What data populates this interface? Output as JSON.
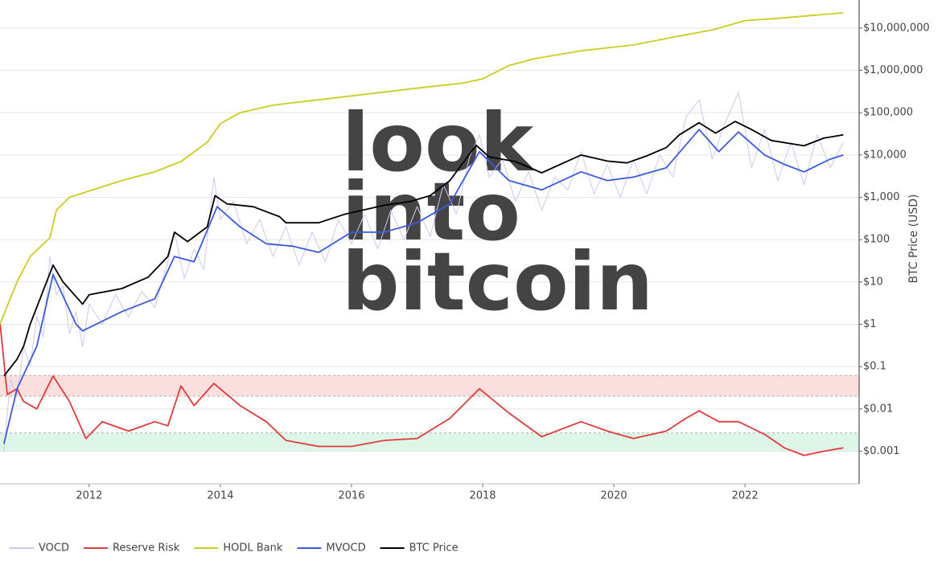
{
  "chart_data": {
    "type": "line",
    "log_y": true,
    "grid": true,
    "y_label": "BTC Price (USD)",
    "watermark": [
      "look",
      "into",
      "bitcoin"
    ],
    "xlim": [
      2010.64,
      2023.74
    ],
    "xticks": [
      2012,
      2014,
      2016,
      2018,
      2020,
      2022
    ],
    "ylim": [
      0.00017,
      46000000
    ],
    "yticks": [
      {
        "value": 0.001,
        "label": "$0.001"
      },
      {
        "value": 0.01,
        "label": "$0.01"
      },
      {
        "value": 0.1,
        "label": "$0.1"
      },
      {
        "value": 1,
        "label": "$1"
      },
      {
        "value": 10,
        "label": "$10"
      },
      {
        "value": 100,
        "label": "$100"
      },
      {
        "value": 1000,
        "label": "$1,000"
      },
      {
        "value": 10000,
        "label": "$10,000"
      },
      {
        "value": 100000,
        "label": "$100,000"
      },
      {
        "value": 1000000,
        "label": "$1,000,000"
      },
      {
        "value": 10000000,
        "label": "$10,000,000"
      }
    ],
    "bands": [
      {
        "from": 0.02,
        "to": 0.062,
        "color": "#f8c8c8"
      },
      {
        "from": 0.001,
        "to": 0.0027,
        "color": "#c8f0d8"
      }
    ],
    "legend": "bottom-left",
    "series": [
      {
        "name": "VOCD",
        "color": "#c9c9f2",
        "x": [
          2010.7,
          2010.8,
          2010.9,
          2011.0,
          2011.1,
          2011.2,
          2011.3,
          2011.4,
          2011.5,
          2011.6,
          2011.7,
          2011.8,
          2011.9,
          2012.0,
          2012.2,
          2012.4,
          2012.6,
          2012.8,
          2013.0,
          2013.2,
          2013.3,
          2013.45,
          2013.6,
          2013.75,
          2013.9,
          2014.0,
          2014.2,
          2014.4,
          2014.6,
          2014.8,
          2015.0,
          2015.2,
          2015.4,
          2015.6,
          2015.8,
          2016.0,
          2016.2,
          2016.4,
          2016.6,
          2016.8,
          2017.0,
          2017.2,
          2017.4,
          2017.6,
          2017.8,
          2017.95,
          2018.1,
          2018.3,
          2018.5,
          2018.7,
          2018.9,
          2019.1,
          2019.3,
          2019.5,
          2019.7,
          2019.9,
          2020.1,
          2020.3,
          2020.5,
          2020.7,
          2020.9,
          2021.1,
          2021.3,
          2021.5,
          2021.7,
          2021.9,
          2022.1,
          2022.3,
          2022.5,
          2022.7,
          2022.9,
          2023.1,
          2023.3,
          2023.5
        ],
        "values": [
          0.001,
          0.05,
          0.02,
          0.3,
          0.1,
          1.5,
          0.5,
          40,
          5,
          8,
          0.6,
          2,
          0.3,
          3,
          1,
          5,
          1.5,
          6,
          2.5,
          30,
          150,
          12,
          60,
          20,
          3000,
          300,
          800,
          80,
          300,
          40,
          200,
          25,
          150,
          30,
          300,
          80,
          400,
          60,
          500,
          100,
          600,
          120,
          2000,
          400,
          9000,
          30000,
          3000,
          8000,
          800,
          4000,
          500,
          3000,
          1500,
          12000,
          1200,
          6000,
          1000,
          8000,
          1200,
          10000,
          3000,
          80000,
          200000,
          8000,
          60000,
          300000,
          5000,
          40000,
          2500,
          20000,
          2000,
          30000,
          5000,
          20000
        ]
      },
      {
        "name": "Reserve Risk",
        "color": "#e03a3a",
        "x": [
          2010.64,
          2010.75,
          2010.9,
          2011.0,
          2011.2,
          2011.45,
          2011.7,
          2011.95,
          2012.2,
          2012.6,
          2013.0,
          2013.2,
          2013.4,
          2013.6,
          2013.9,
          2014.3,
          2014.7,
          2015.0,
          2015.5,
          2016.0,
          2016.5,
          2017.0,
          2017.5,
          2017.95,
          2018.4,
          2018.9,
          2019.5,
          2019.9,
          2020.3,
          2020.8,
          2021.1,
          2021.3,
          2021.6,
          2021.9,
          2022.3,
          2022.6,
          2022.9,
          2023.2,
          2023.5
        ],
        "values": [
          1.1,
          0.022,
          0.03,
          0.015,
          0.01,
          0.06,
          0.015,
          0.002,
          0.005,
          0.003,
          0.005,
          0.004,
          0.035,
          0.012,
          0.04,
          0.012,
          0.005,
          0.0018,
          0.0013,
          0.0013,
          0.0018,
          0.002,
          0.006,
          0.03,
          0.008,
          0.0022,
          0.005,
          0.003,
          0.002,
          0.003,
          0.006,
          0.009,
          0.005,
          0.005,
          0.0025,
          0.0012,
          0.0008,
          0.001,
          0.0012
        ]
      },
      {
        "name": "HODL Bank",
        "color": "#cccc22",
        "x": [
          2010.64,
          2010.75,
          2010.9,
          2011.1,
          2011.4,
          2011.5,
          2011.7,
          2012.5,
          2013.0,
          2013.4,
          2013.8,
          2014.0,
          2014.3,
          2014.8,
          2016.0,
          2017.0,
          2017.7,
          2018.0,
          2018.4,
          2018.8,
          2019.5,
          2020.3,
          2021.0,
          2021.5,
          2022.0,
          2022.5,
          2023.5
        ],
        "values": [
          1,
          2.7,
          10,
          40,
          110,
          500,
          1000,
          2500,
          4000,
          7000,
          20000,
          55000,
          100000,
          150000,
          250000,
          380000,
          500000,
          630000,
          1300000,
          1900000,
          2900000,
          4000000,
          6500000,
          9000000,
          15000000,
          17000000,
          23000000
        ]
      },
      {
        "name": "MVOCD",
        "color": "#3b5bdb",
        "x": [
          2010.7,
          2010.9,
          2011.2,
          2011.45,
          2011.8,
          2011.9,
          2012.5,
          2013.0,
          2013.3,
          2013.6,
          2013.95,
          2014.3,
          2014.7,
          2015.1,
          2015.5,
          2016.0,
          2016.5,
          2017.0,
          2017.5,
          2017.95,
          2018.4,
          2018.9,
          2019.5,
          2019.9,
          2020.3,
          2020.8,
          2021.3,
          2021.6,
          2021.9,
          2022.3,
          2022.6,
          2022.9,
          2023.3,
          2023.5
        ],
        "values": [
          0.0015,
          0.03,
          0.3,
          15,
          1,
          0.7,
          2,
          4,
          40,
          30,
          600,
          200,
          80,
          70,
          50,
          150,
          150,
          250,
          700,
          12000,
          2500,
          1500,
          4000,
          2500,
          3000,
          5000,
          40000,
          12000,
          35000,
          10000,
          6000,
          4000,
          8000,
          10000
        ]
      },
      {
        "name": "BTC Price",
        "color": "#000000",
        "x": [
          2010.7,
          2010.9,
          2011.0,
          2011.1,
          2011.45,
          2011.6,
          2011.9,
          2012.0,
          2012.5,
          2012.9,
          2013.2,
          2013.3,
          2013.5,
          2013.8,
          2013.92,
          2014.1,
          2014.5,
          2014.9,
          2015.0,
          2015.5,
          2015.9,
          2016.5,
          2016.9,
          2017.2,
          2017.5,
          2017.9,
          2018.1,
          2018.5,
          2018.9,
          2019.5,
          2019.9,
          2020.2,
          2020.5,
          2020.8,
          2021.0,
          2021.3,
          2021.55,
          2021.85,
          2022.1,
          2022.4,
          2022.9,
          2023.2,
          2023.5
        ],
        "values": [
          0.06,
          0.15,
          0.3,
          1,
          25,
          10,
          3,
          5,
          7,
          13,
          40,
          150,
          90,
          200,
          1100,
          700,
          600,
          350,
          250,
          250,
          400,
          650,
          800,
          1100,
          2500,
          17000,
          9000,
          7000,
          3800,
          10000,
          7200,
          6500,
          9500,
          15000,
          30000,
          58000,
          33000,
          62000,
          40000,
          22000,
          16500,
          25000,
          30000
        ]
      }
    ]
  }
}
